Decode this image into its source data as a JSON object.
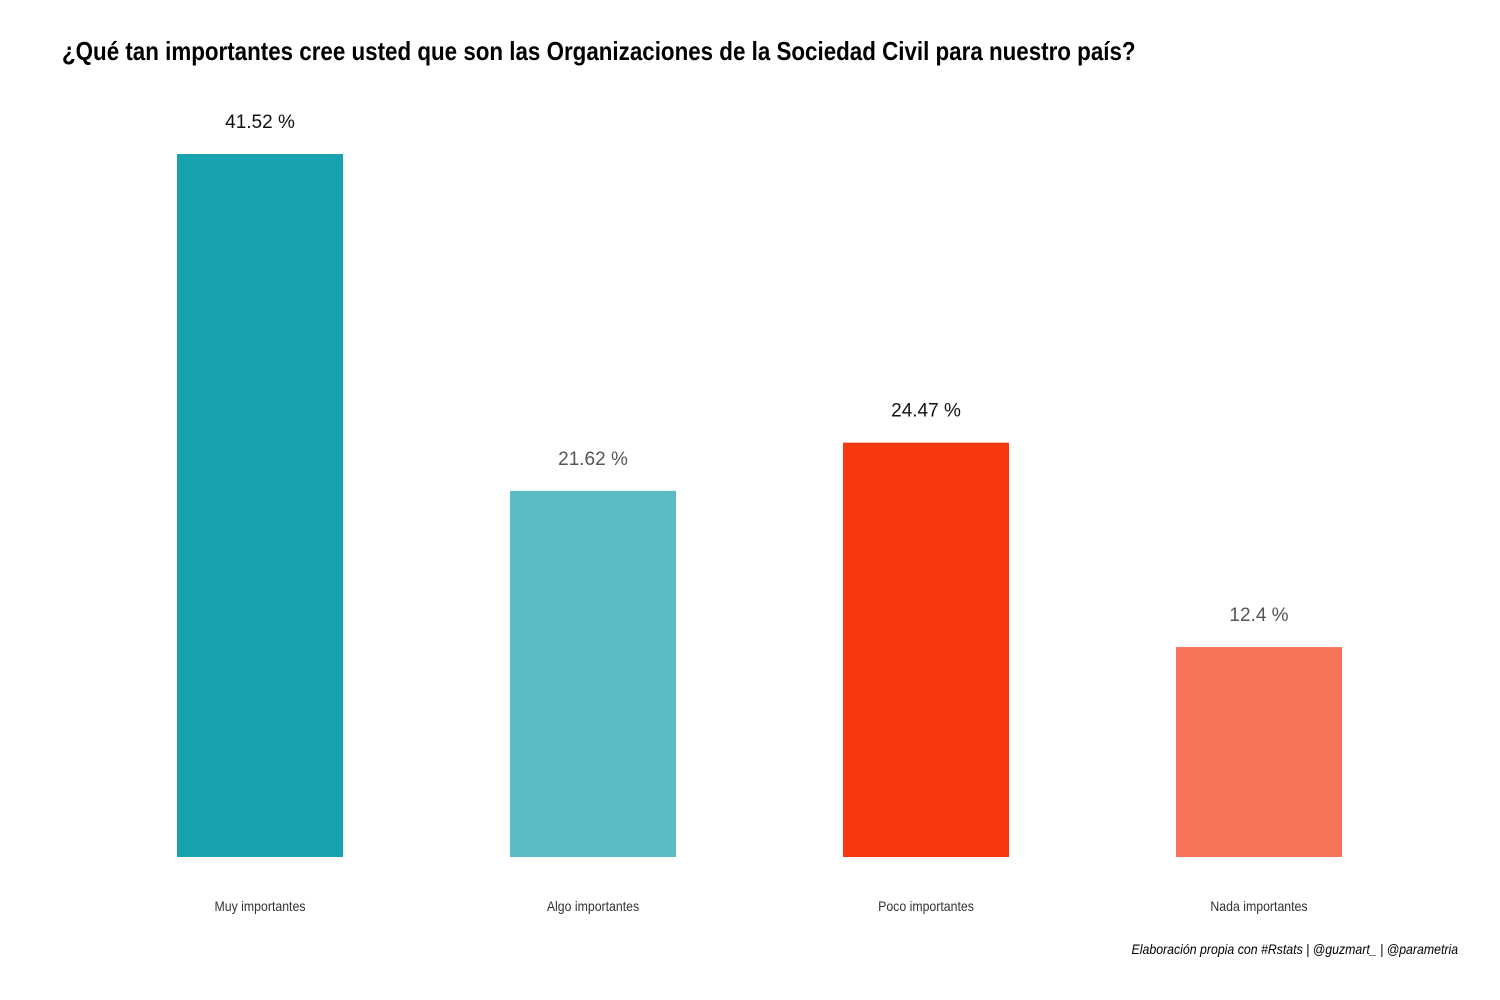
{
  "chart_data": {
    "type": "bar",
    "title": "¿Qué tan importantes cree usted que son las Organizaciones de la Sociedad Civil para nuestro país?",
    "categories": [
      "Muy importantes",
      "Algo importantes",
      "Poco importantes",
      "Nada importantes"
    ],
    "values": [
      41.52,
      21.62,
      24.47,
      12.4
    ],
    "value_labels": [
      "41.52 %",
      "21.62 %",
      "24.47 %",
      "12.4 %"
    ],
    "colors": [
      "#16A2AE",
      "#5CBCC6",
      "#F8370F",
      "#F87458"
    ],
    "value_label_colors": [
      "#111111",
      "#555555",
      "#111111",
      "#555555"
    ],
    "ylim": [
      0,
      41.52
    ],
    "grid": false,
    "legend": "none",
    "xlabel": "",
    "ylabel": "",
    "caption": "Elaboración propia con #Rstats | @guzmart_ | @parametria"
  }
}
